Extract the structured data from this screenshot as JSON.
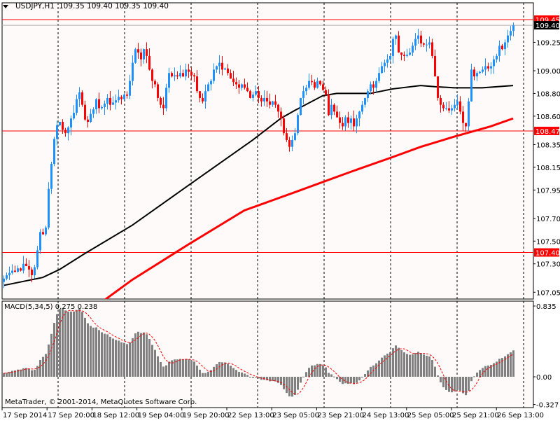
{
  "header": {
    "symbol": "USDJPY,H1",
    "ohlc": "109.35 109.40 109.35 109.40"
  },
  "macd_label": {
    "name": "MACD(5,34,5)",
    "values": "0.275 0.238"
  },
  "footer": "MetaTrader, © 2001-2014, MetaQuotes Software Corp.",
  "colors": {
    "bull": "#1e90ff",
    "bear": "#ff0000",
    "ma_fast": "#000000",
    "ma_slow": "#ff0000",
    "level_line": "#ff0000",
    "histogram": "#808080",
    "signal": "#ff0000",
    "background": "#fdfaf9"
  },
  "chart_data": {
    "type": "candlestick",
    "symbol": "USDJPY",
    "timeframe": "H1",
    "price_axis": {
      "range": [
        107.0,
        109.6
      ],
      "ticks": [
        "109.25",
        "109.00",
        "108.80",
        "108.60",
        "108.35",
        "108.15",
        "107.95",
        "107.70",
        "107.50",
        "107.30",
        "107.05"
      ]
    },
    "price_labels": [
      {
        "value": "109.45",
        "style": "red"
      },
      {
        "value": "109.40",
        "style": "black"
      },
      {
        "value": "108.47",
        "style": "red"
      },
      {
        "value": "107.40",
        "style": "red"
      }
    ],
    "horizontal_levels": [
      109.45,
      108.47,
      107.4
    ],
    "bid_line": 109.4,
    "time_labels": [
      "17 Sep 2014",
      "17 Sep 20:00",
      "18 Sep 12:00",
      "19 Sep 04:00",
      "19 Sep 20:00",
      "22 Sep 13:00",
      "23 Sep 05:00",
      "23 Sep 21:00",
      "24 Sep 13:00",
      "25 Sep 05:00",
      "25 Sep 21:00",
      "26 Sep 13:00"
    ],
    "closes": [
      107.17,
      107.2,
      107.22,
      107.24,
      107.23,
      107.26,
      107.24,
      107.3,
      107.28,
      107.25,
      107.2,
      107.27,
      107.42,
      107.58,
      107.56,
      107.62,
      107.96,
      108.18,
      108.4,
      108.52,
      108.55,
      108.48,
      108.45,
      108.5,
      108.58,
      108.63,
      108.75,
      108.81,
      108.7,
      108.57,
      108.55,
      108.62,
      108.66,
      108.75,
      108.67,
      108.68,
      108.71,
      108.76,
      108.7,
      108.72,
      108.74,
      108.77,
      108.75,
      108.79,
      108.78,
      108.91,
      109.07,
      109.19,
      109.16,
      109.1,
      109.19,
      109.13,
      109.01,
      108.91,
      108.88,
      108.76,
      108.7,
      108.67,
      108.85,
      108.98,
      108.95,
      108.96,
      108.95,
      108.98,
      108.95,
      109.01,
      108.99,
      108.96,
      108.95,
      108.82,
      108.76,
      108.73,
      108.82,
      108.88,
      108.91,
      109.01,
      109.04,
      109.07,
      109.01,
      109.02,
      108.98,
      108.93,
      108.9,
      108.88,
      108.85,
      108.88,
      108.85,
      108.82,
      108.76,
      108.79,
      108.82,
      108.76,
      108.73,
      108.76,
      108.73,
      108.7,
      108.73,
      108.7,
      108.64,
      108.58,
      108.45,
      108.39,
      108.33,
      108.39,
      108.45,
      108.61,
      108.76,
      108.82,
      108.85,
      108.91,
      108.9,
      108.85,
      108.91,
      108.88,
      108.83,
      108.79,
      108.61,
      108.7,
      108.64,
      108.59,
      108.54,
      108.51,
      108.59,
      108.54,
      108.58,
      108.51,
      108.58,
      108.64,
      108.7,
      108.76,
      108.82,
      108.88,
      108.85,
      108.91,
      108.98,
      109.04,
      109.07,
      109.1,
      109.13,
      109.28,
      109.31,
      109.16,
      109.14,
      109.13,
      109.14,
      109.16,
      109.22,
      109.28,
      109.31,
      109.24,
      109.23,
      109.23,
      109.25,
      109.13,
      108.95,
      108.76,
      108.7,
      108.67,
      108.67,
      108.65,
      108.67,
      108.7,
      108.73,
      108.64,
      108.54,
      108.51,
      108.73,
      109.01,
      108.95,
      108.98,
      108.99,
      109.01,
      109.04,
      109.02,
      109.04,
      109.1,
      109.13,
      109.22,
      109.19,
      109.25,
      109.31,
      109.35,
      109.4
    ],
    "ma_fast": [
      [
        0,
        107.11
      ],
      [
        14,
        107.18
      ],
      [
        20,
        107.25
      ],
      [
        29,
        107.39
      ],
      [
        46,
        107.64
      ],
      [
        66,
        107.99
      ],
      [
        89,
        108.39
      ],
      [
        99,
        108.58
      ],
      [
        104,
        108.65
      ],
      [
        114,
        108.78
      ],
      [
        119,
        108.8
      ],
      [
        131,
        108.8
      ],
      [
        139,
        108.84
      ],
      [
        149,
        108.87
      ],
      [
        154,
        108.86
      ],
      [
        161,
        108.85
      ],
      [
        171,
        108.85
      ],
      [
        182,
        108.87
      ]
    ],
    "ma_slow": [
      [
        36,
        106.98
      ],
      [
        46,
        107.16
      ],
      [
        66,
        107.47
      ],
      [
        86,
        107.77
      ],
      [
        104,
        107.93
      ],
      [
        124,
        108.11
      ],
      [
        139,
        108.24
      ],
      [
        149,
        108.33
      ],
      [
        161,
        108.42
      ],
      [
        174,
        108.51
      ],
      [
        182,
        108.58
      ]
    ],
    "macd": {
      "params": [
        5,
        34,
        5
      ],
      "axis_ticks": [
        "0.835",
        "0.00",
        "-0.327"
      ],
      "range": [
        -0.327,
        0.835
      ]
    }
  }
}
